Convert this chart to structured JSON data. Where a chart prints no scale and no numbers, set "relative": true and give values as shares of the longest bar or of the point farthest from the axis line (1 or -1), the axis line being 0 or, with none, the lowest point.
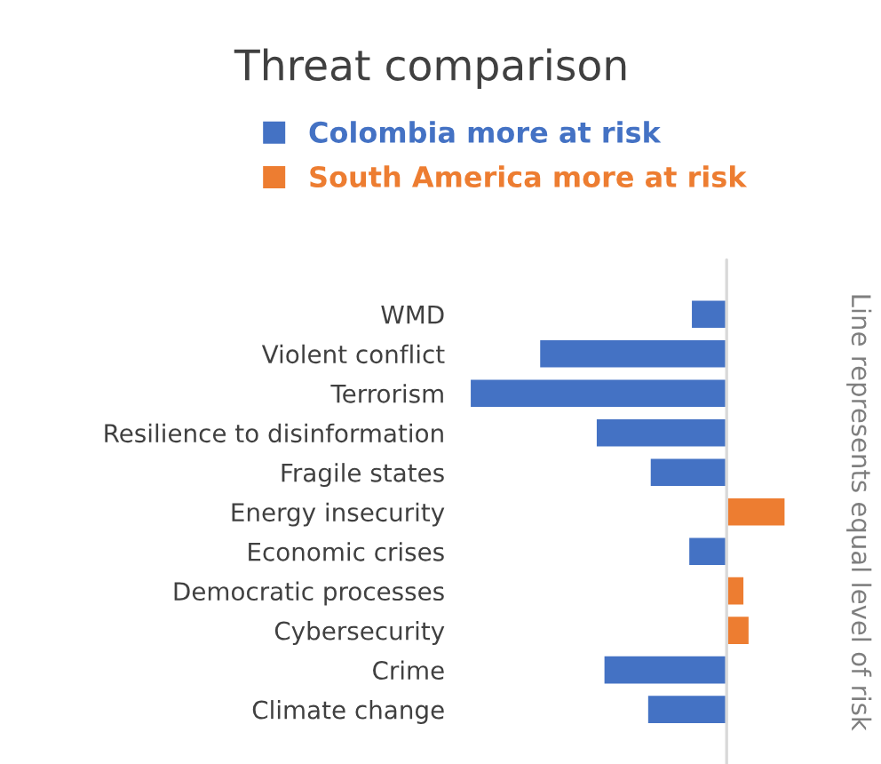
{
  "chart_data": {
    "type": "bar",
    "orientation": "horizontal",
    "relative": true,
    "title": "Threat comparison",
    "categories": [
      "WMD",
      "Violent conflict",
      "Terrorism",
      "Resilience to disinformation",
      "Fragile states",
      "Energy insecurity",
      "Economic crises",
      "Democratic processes",
      "Cybersecurity",
      "Crime",
      "Climate change"
    ],
    "series": [
      {
        "name": "Colombia more at risk",
        "color": "#4472c4",
        "values": [
          -0.14,
          -0.73,
          -1,
          -0.51,
          -0.3,
          null,
          -0.15,
          null,
          null,
          -0.48,
          -0.31
        ]
      },
      {
        "name": "South America more at risk",
        "color": "#ed7d31",
        "values": [
          null,
          null,
          null,
          null,
          null,
          0.23,
          null,
          0.07,
          0.09,
          null,
          null
        ]
      }
    ],
    "legend": "top",
    "grid": false,
    "annotations": [
      "Line represents equal level of risk"
    ]
  }
}
